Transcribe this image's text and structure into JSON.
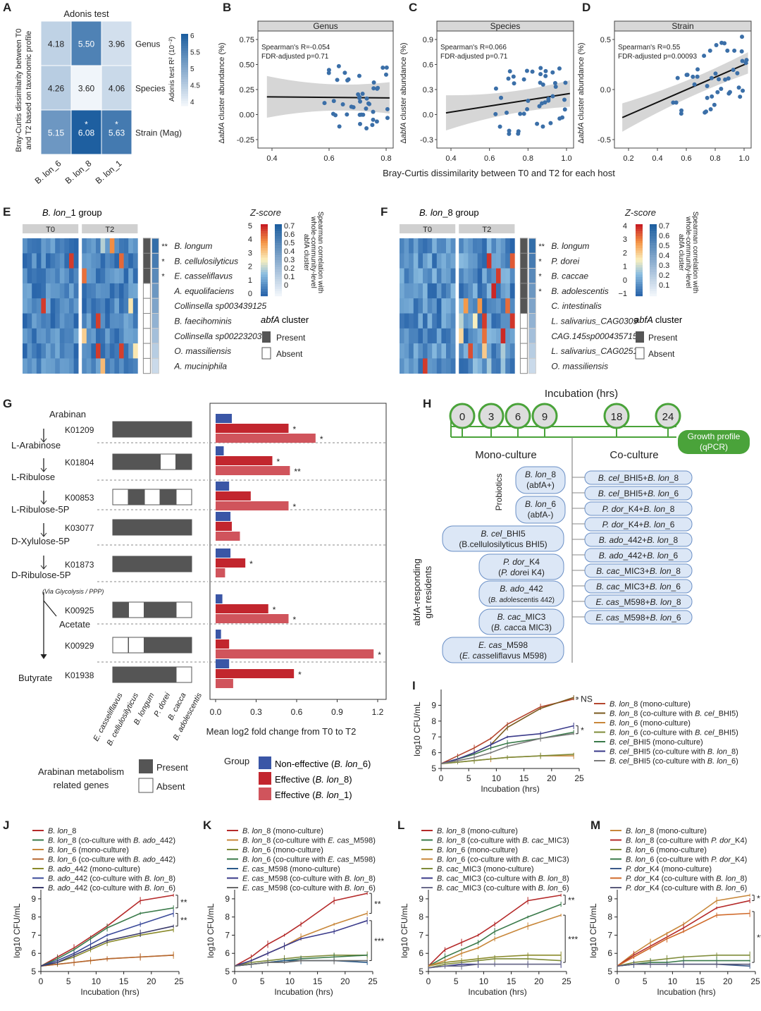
{
  "panels": {
    "A": "A",
    "B": "B",
    "C": "C",
    "D": "D",
    "E": "E",
    "F": "F",
    "G": "G",
    "H": "H",
    "I": "I",
    "J": "J",
    "K": "K",
    "L": "L",
    "M": "M"
  },
  "panelA": {
    "title": "Adonis test",
    "ylabel1": "Bray-Curtis dissimilarity between T0",
    "ylabel2": "and T2 based on taxonomic profile",
    "rows": [
      "Genus",
      "Species",
      "Strain (Mag)"
    ],
    "cols": [
      "B. lon_6",
      "B. lon_8",
      "B. lon_1"
    ],
    "values": [
      [
        4.18,
        5.5,
        3.96
      ],
      [
        4.26,
        3.6,
        4.06
      ],
      [
        5.15,
        6.08,
        5.63
      ]
    ],
    "labels": [
      [
        "4.18",
        "5.50",
        "3.96"
      ],
      [
        "4.26",
        "3.60",
        "4.06"
      ],
      [
        "5.15",
        "6.08",
        "5.63"
      ]
    ],
    "stars": [
      [
        "",
        "",
        ""
      ],
      [
        "",
        "",
        ""
      ],
      [
        "",
        "*",
        "*"
      ]
    ],
    "cbar_label": "Adonis test R² (10⁻²)",
    "cbar_ticks": [
      "6",
      "5.5",
      "5",
      "4.5",
      "4"
    ]
  },
  "panelBCD": {
    "xlabel": "Bray-Curtis dissimilarity between T0 and T2 for each host",
    "ylabel": "ΔabfA cluster abundance (%)",
    "panels": [
      {
        "title": "Genus",
        "stat1": "Spearman's R=-0.054",
        "stat2": "FDR-adjusted p=0.71",
        "xticks": [
          "0.4",
          "0.6",
          "0.8"
        ],
        "yticks": [
          "0.75",
          "0.50",
          "0.25",
          "0.00",
          "-0.25"
        ]
      },
      {
        "title": "Species",
        "stat1": "Spearman's R=0.066",
        "stat2": "FDR-adjusted p=0.71",
        "xticks": [
          "0.4",
          "0.6",
          "0.8",
          "1.0"
        ],
        "yticks": [
          "0.9",
          "0.6",
          "0.3",
          "0.0",
          "-0.3"
        ]
      },
      {
        "title": "Strain",
        "stat1": "Spearman's R=0.55",
        "stat2": "FDR-adjusted p=0.00093",
        "xticks": [
          "0.2",
          "0.4",
          "0.6",
          "0.8",
          "1.0"
        ],
        "yticks": [
          "0.5",
          "0.0",
          "-0.5"
        ]
      }
    ]
  },
  "panelE": {
    "title_it": "B. lon",
    "title_rest": "_1 group",
    "t0": "T0",
    "t2": "T2",
    "species": [
      "B. longum",
      "B. cellulosilyticus",
      "E. casseliflavus",
      "A. equolifaciens",
      "Collinsella sp003439125",
      "B. faecihominis",
      "Collinsella sp002232035",
      "O. massiliensis",
      "A. muciniphila"
    ],
    "stars": [
      "**",
      "*",
      "*",
      "",
      "",
      "",
      "",
      "",
      ""
    ],
    "present": [
      1,
      1,
      1,
      0,
      0,
      0,
      0,
      0,
      0
    ],
    "zscore": "Z-score",
    "zticks": [
      "5",
      "4",
      "3",
      "2",
      "1",
      "0"
    ],
    "cticks": [
      "0.7",
      "0.6",
      "0.5",
      "0.4",
      "0.3",
      "0.2",
      "0.1",
      "0"
    ],
    "clabel1": "Spearman correlation with",
    "clabel2": "whole-community-level",
    "clabel3": "abfA cluster",
    "abfa": "abfA",
    "cluster": "cluster",
    "present_lbl": "Present",
    "absent_lbl": "Absent"
  },
  "panelF": {
    "title_it": "B. lon",
    "title_rest": "_8 group",
    "t0": "T0",
    "t2": "T2",
    "species": [
      "B. longum",
      "P. dorei",
      "B. caccae",
      "B. adolescentis",
      "C. intestinalis",
      "L. salivarius_CAG0309",
      "CAG.145sp000435715",
      "L. salivarius_CAG0251",
      "O. massiliensis"
    ],
    "stars": [
      "**",
      "*",
      "*",
      "*",
      "",
      "",
      "",
      "",
      ""
    ],
    "present": [
      1,
      1,
      1,
      1,
      1,
      0,
      0,
      0,
      0
    ],
    "zscore": "Z-score",
    "zticks": [
      "4",
      "3",
      "2",
      "1",
      "0",
      "−1"
    ],
    "cticks": [
      "0.7",
      "0.6",
      "0.5",
      "0.4",
      "0.3",
      "0.2",
      "0.1"
    ],
    "clabel1": "Spearman correlation with",
    "clabel2": "whole-community-level",
    "clabel3": "abfA cluster",
    "abfa": "abfA",
    "cluster": "cluster",
    "present_lbl": "Present",
    "absent_lbl": "Absent"
  },
  "panelG": {
    "metabolites": [
      "Arabinan",
      "L-Arabinose",
      "L-Ribulose",
      "L-Ribulose-5P",
      "D-Xylulose-5P",
      "D-Ribulose-5P",
      "Acetate",
      "Butyrate"
    ],
    "via": "(Via Glycolysis / PPP)",
    "kos": [
      "K01209",
      "K01804",
      "K00853",
      "K03077",
      "K01873",
      "K00925",
      "K00929",
      "K01938"
    ],
    "presence": [
      [
        1,
        1,
        1,
        1,
        1
      ],
      [
        1,
        1,
        1,
        0,
        1
      ],
      [
        0,
        1,
        0,
        1,
        0
      ],
      [
        1,
        1,
        1,
        1,
        1
      ],
      [
        1,
        1,
        1,
        1,
        1
      ],
      [
        1,
        0,
        1,
        1,
        0
      ],
      [
        0,
        0,
        1,
        1,
        1
      ],
      [
        1,
        1,
        1,
        1,
        0
      ]
    ],
    "species": [
      "E. casseliflavus",
      "B. cellulosilyticus",
      "B. longum",
      "P. dorei",
      "B. cacca",
      "B. adolescentis"
    ],
    "bars": [
      [
        0.12,
        0.54,
        0.74
      ],
      [
        0.06,
        0.42,
        0.55
      ],
      [
        0.1,
        0.26,
        0.54
      ],
      [
        0.11,
        0.12,
        0.18
      ],
      [
        0.11,
        0.22,
        0.07
      ],
      [
        0.05,
        0.39,
        0.54
      ],
      [
        0.04,
        0.1,
        1.17
      ],
      [
        0.1,
        0.58,
        0.13
      ]
    ],
    "stars": [
      [
        "",
        "*",
        "*"
      ],
      [
        "",
        "*",
        "**"
      ],
      [
        "",
        "",
        "*"
      ],
      [
        "",
        "",
        ""
      ],
      [
        "",
        "*",
        ""
      ],
      [
        "",
        "*",
        "*"
      ],
      [
        "",
        "",
        "*"
      ],
      [
        "",
        "*",
        ""
      ]
    ],
    "xticks": [
      "0.0",
      "0.3",
      "0.6",
      "0.9",
      "1.2"
    ],
    "xlabel": "Mean log2 fold change from T0 to T2",
    "legend_title": "Arabinan metabolism related genes",
    "legend_t1": "Arabinan metabolism",
    "legend_t2": "related genes",
    "present": "Present",
    "absent": "Absent",
    "group": "Group",
    "groups": [
      {
        "label": "Non-effective (",
        "it": "B. lon",
        "rest": "_6)",
        "color": "#3a56a6"
      },
      {
        "label": "Effective (",
        "it": "B. lon",
        "rest": "_8)",
        "color": "#c2262e"
      },
      {
        "label": "Effective (",
        "it": "B. lon",
        "rest": "_1)",
        "color": "#d0545c"
      }
    ]
  },
  "panelH": {
    "title": "Incubation (hrs)",
    "times": [
      "0",
      "3",
      "6",
      "9",
      "18",
      "24"
    ],
    "growth1": "Growth profile",
    "growth2": "(qPCR)",
    "mono": "Mono-culture",
    "co": "Co-culture",
    "probiotics": "Probiotics",
    "residents1": "abfA-responding",
    "residents2": "gut residents",
    "mono_items": [
      [
        "B. lon_8",
        "(abfA+)"
      ],
      [
        "B. lon_6",
        "(abfA-)"
      ],
      [
        "B. cel_BHI5",
        "(B.cellulosilyticus BHI5)"
      ],
      [
        "P. dor_K4",
        "(P. dorei K4)"
      ],
      [
        "B. ado_442",
        "(B. adolescentis 442)"
      ],
      [
        "B. cac_MIC3",
        "(B. cacca MIC3)"
      ],
      [
        "E. cas_M598",
        "(E. casseliflavus M598)"
      ]
    ],
    "co_items": [
      "B. cel_BHI5+B. lon_8",
      "B. cel_BHI5+B. lon_6",
      "P. dor_K4+B. lon_8",
      "P. dor_K4+B. lon_6",
      "B. ado_442+B. lon_8",
      "B. ado_442+B. lon_6",
      "B. cac_MIC3+B. lon_8",
      "B. cac_MIC3+B. lon_6",
      "E. cas_M598+B. lon_8",
      "E. cas_M598+B. lon_6"
    ]
  },
  "growth": {
    "xlabel": "Incubation (hrs)",
    "ylabel": "log10 CFU/mL",
    "x": [
      0,
      3,
      6,
      9,
      12,
      18,
      24
    ],
    "xticks": [
      "0",
      "5",
      "10",
      "15",
      "20",
      "25"
    ],
    "yticks": [
      "5",
      "6",
      "7",
      "8",
      "9"
    ],
    "I": {
      "legend": [
        "B. lon_8 (mono-culture)",
        "B. lon_8 (co-culture with B. cel_BHI5)",
        "B. lon_6 (mono-culture)",
        "B. lon_6 (co-culture with B. cel_BHI5)",
        "B. cel_BHI5 (mono-culture)",
        "B. cel_BHI5 (co-culture with B. lon_8)",
        "B. cel_BHI5 (co-culture with B. lon_6)"
      ],
      "colors": [
        "#b5462f",
        "#7a5a1e",
        "#c8873a",
        "#7f8c3a",
        "#3a7a4a",
        "#3a3a8a",
        "#7a7a7a"
      ],
      "series": [
        [
          5.3,
          5.8,
          6.3,
          6.9,
          7.8,
          8.9,
          9.4
        ],
        [
          5.3,
          5.6,
          6.0,
          6.5,
          7.6,
          8.8,
          9.5
        ],
        [
          5.3,
          5.4,
          5.5,
          5.6,
          5.7,
          5.8,
          5.8
        ],
        [
          5.3,
          5.4,
          5.5,
          5.6,
          5.7,
          5.8,
          5.9
        ],
        [
          5.3,
          5.6,
          5.9,
          6.3,
          6.6,
          6.9,
          7.3
        ],
        [
          5.3,
          5.6,
          6.0,
          6.5,
          7.0,
          7.2,
          7.7
        ],
        [
          5.3,
          5.5,
          5.7,
          6.0,
          6.4,
          6.9,
          7.2
        ]
      ],
      "ann": [
        {
          "t": "NS",
          "y1": 9.4,
          "y2": 9.5
        },
        {
          "t": "*",
          "y1": 7.2,
          "y2": 7.7
        }
      ]
    },
    "J": {
      "legend": [
        "B. lon_8",
        "B. lon_8 (co-culture with B. ado_442)",
        "B. lon_6 (mono-culture)",
        "B. lon_6 (co-culture with B. ado_442)",
        "B. ado_442 (mono-culture)",
        "B. ado_442 (co-culture with B. lon_8)",
        "B. ado_442 (co-culture with B. lon_6)"
      ],
      "colors": [
        "#b52a2a",
        "#3a7a4a",
        "#c8873a",
        "#b5662f",
        "#8a8a2a",
        "#3a4a9a",
        "#3a3a6a"
      ],
      "series": [
        [
          5.3,
          5.8,
          6.3,
          6.9,
          7.5,
          8.9,
          9.2
        ],
        [
          5.3,
          5.7,
          6.2,
          6.8,
          7.4,
          8.2,
          8.5
        ],
        [
          5.3,
          5.4,
          5.5,
          5.6,
          5.7,
          5.8,
          5.9
        ],
        [
          5.3,
          5.4,
          5.5,
          5.6,
          5.7,
          5.8,
          5.9
        ],
        [
          5.3,
          5.5,
          5.8,
          6.2,
          6.6,
          7.0,
          7.3
        ],
        [
          5.3,
          5.6,
          6.0,
          6.5,
          7.0,
          7.6,
          8.2
        ],
        [
          5.3,
          5.5,
          5.9,
          6.3,
          6.7,
          7.1,
          7.5
        ]
      ],
      "ann": [
        {
          "t": "**",
          "y1": 8.5,
          "y2": 9.2
        },
        {
          "t": "**",
          "y1": 7.5,
          "y2": 8.2
        }
      ]
    },
    "K": {
      "legend": [
        "B. lon_8 (mono-culture)",
        "B. lon_8 (co-culture with E. cas_M598)",
        "B. lon_6 (mono-culture)",
        "B. lon_6 (co-culture with E. cas_M598)",
        "E. cas_M598 (mono-culture)",
        "E. cas_M598 (co-culture with B. lon_8)",
        "E. cas_M598 (co-culture with B. lon_6)"
      ],
      "colors": [
        "#b52a2a",
        "#c8873a",
        "#7f8c3a",
        "#3a7a4a",
        "#2a5a8a",
        "#3a3a8a",
        "#6a6a6a"
      ],
      "series": [
        [
          5.3,
          5.8,
          6.5,
          7.0,
          7.6,
          8.9,
          9.3
        ],
        [
          5.3,
          5.6,
          6.0,
          6.4,
          6.9,
          7.6,
          8.2
        ],
        [
          5.3,
          5.5,
          5.6,
          5.7,
          5.8,
          5.9,
          5.9
        ],
        [
          5.3,
          5.4,
          5.5,
          5.6,
          5.7,
          5.8,
          5.9
        ],
        [
          5.3,
          5.4,
          5.5,
          5.6,
          5.6,
          5.6,
          5.5
        ],
        [
          5.3,
          5.6,
          6.0,
          6.4,
          6.8,
          7.2,
          7.8
        ],
        [
          5.3,
          5.4,
          5.5,
          5.5,
          5.6,
          5.6,
          5.6
        ]
      ],
      "ann": [
        {
          "t": "**",
          "y1": 8.2,
          "y2": 9.3
        },
        {
          "t": "***",
          "y1": 5.6,
          "y2": 7.8
        }
      ]
    },
    "L": {
      "legend": [
        "B. lon_8 (mono-culture)",
        "B. lon_8 (co-culture with B. cac_MIC3)",
        "B. lon_6 (mono-culture)",
        "B. lon_6 (co-culture with B. cac_MIC3)",
        "B. cac_MIC3 (mono-culture)",
        "B. cac_MIC3 (co-culture with B. lon_8)",
        "B. cac_MIC3 (co-culture with B. lon_6)"
      ],
      "colors": [
        "#b52a2a",
        "#3a7a4a",
        "#8a8a2a",
        "#c8873a",
        "#7f8c3a",
        "#3a3a8a",
        "#6a6a8a"
      ],
      "series": [
        [
          5.3,
          6.2,
          6.6,
          7.0,
          7.6,
          8.9,
          9.2
        ],
        [
          5.3,
          5.8,
          6.2,
          6.6,
          7.2,
          8.0,
          8.7
        ],
        [
          5.3,
          5.5,
          5.6,
          5.7,
          5.8,
          5.9,
          5.9
        ],
        [
          5.3,
          5.6,
          6.0,
          6.3,
          6.8,
          7.5,
          8.1
        ],
        [
          5.2,
          5.4,
          5.5,
          5.6,
          5.7,
          5.7,
          5.6
        ],
        [
          5.2,
          5.3,
          5.4,
          5.4,
          5.4,
          5.4,
          5.4
        ],
        [
          5.2,
          5.3,
          5.3,
          5.4,
          5.4,
          5.4,
          5.4
        ]
      ],
      "ann": [
        {
          "t": "**",
          "y1": 8.7,
          "y2": 9.2
        },
        {
          "t": "***",
          "y1": 5.5,
          "y2": 8.1
        }
      ]
    },
    "M": {
      "legend": [
        "B. lon_8 (mono-culture)",
        "B. lon_8 (co-culture with P. dor_K4)",
        "B. lon_6 (mono-culture)",
        "B. lon_6 (co-culture with P. dor_K4)",
        "P. dor_K4 (mono-culture)",
        "P. dor_K4 (co-culture with B. lon_8)",
        "P. dor_K4 (co-culture with B. lon_6)"
      ],
      "colors": [
        "#c8873a",
        "#b52a2a",
        "#7f8c3a",
        "#3a7a4a",
        "#3a5a8a",
        "#d06a2a",
        "#5a5a7a"
      ],
      "series": [
        [
          5.3,
          6.0,
          6.6,
          7.1,
          7.6,
          8.9,
          9.2
        ],
        [
          5.3,
          5.9,
          6.4,
          6.9,
          7.4,
          8.5,
          8.9
        ],
        [
          5.3,
          5.5,
          5.6,
          5.7,
          5.8,
          5.9,
          5.9
        ],
        [
          5.3,
          5.4,
          5.5,
          5.5,
          5.6,
          5.6,
          5.6
        ],
        [
          5.3,
          5.4,
          5.4,
          5.4,
          5.4,
          5.4,
          5.3
        ],
        [
          5.3,
          5.8,
          6.3,
          6.8,
          7.2,
          8.1,
          8.2
        ],
        [
          5.3,
          5.4,
          5.4,
          5.4,
          5.4,
          5.4,
          5.4
        ]
      ],
      "ann": [
        {
          "t": "*",
          "y1": 8.9,
          "y2": 9.2
        },
        {
          "t": "***",
          "y1": 5.5,
          "y2": 8.3
        }
      ]
    }
  },
  "chart_data": [
    {
      "type": "heatmap",
      "title": "Adonis test",
      "rows": [
        "Genus",
        "Species",
        "Strain (Mag)"
      ],
      "cols": [
        "B. lon_6",
        "B. lon_8",
        "B. lon_1"
      ],
      "values": [
        [
          4.18,
          5.5,
          3.96
        ],
        [
          4.26,
          3.6,
          4.06
        ],
        [
          5.15,
          6.08,
          5.63
        ]
      ]
    },
    {
      "type": "bar",
      "categories": [
        "K01209",
        "K01804",
        "K00853",
        "K03077",
        "K01873",
        "K00925",
        "K00929",
        "K01938"
      ],
      "series": [
        {
          "name": "Non-effective (B. lon_6)",
          "values": [
            0.12,
            0.06,
            0.1,
            0.11,
            0.11,
            0.05,
            0.04,
            0.1
          ]
        },
        {
          "name": "Effective (B. lon_8)",
          "values": [
            0.54,
            0.42,
            0.26,
            0.12,
            0.22,
            0.39,
            0.1,
            0.58
          ]
        },
        {
          "name": "Effective (B. lon_1)",
          "values": [
            0.74,
            0.55,
            0.54,
            0.18,
            0.07,
            0.54,
            1.17,
            0.13
          ]
        }
      ],
      "xlabel": "Mean log2 fold change from T0 to T2",
      "xlim": [
        0,
        1.2
      ]
    }
  ]
}
